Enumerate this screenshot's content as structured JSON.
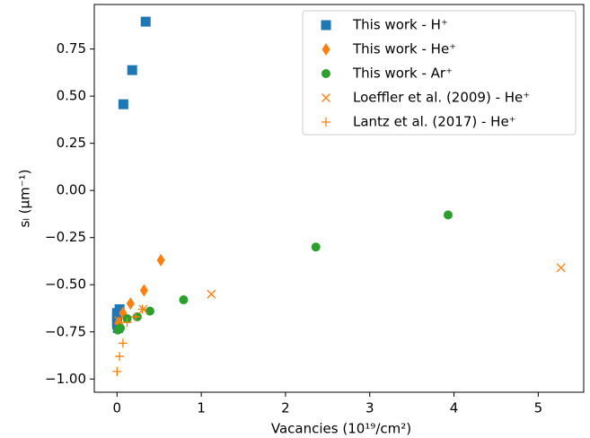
{
  "chart_data": {
    "type": "scatter",
    "x_label": "Vacancies (10¹⁹/cm²)",
    "y_label": "sₗ (μm⁻¹)",
    "xlim": [
      -0.27,
      5.54
    ],
    "ylim": [
      -1.07,
      0.986
    ],
    "xticks": [
      0,
      1,
      2,
      3,
      4,
      5
    ],
    "yticks": [
      {
        "value": -1,
        "label": "−1.00"
      },
      {
        "value": -0.75,
        "label": "−0.75"
      },
      {
        "value": -0.5,
        "label": "−0.50"
      },
      {
        "value": -0.25,
        "label": "−0.25"
      },
      {
        "value": 0,
        "label": "0.00"
      },
      0.25,
      {
        "value": 0.5,
        "label": "0.50"
      },
      0.75
    ],
    "legend": "upper right",
    "series": [
      {
        "name": "This work - H⁺",
        "color": "#1f77b4",
        "marker": "square",
        "x": [
          0.34,
          0.18,
          0.075,
          0.03,
          0.0,
          0.0,
          0.0,
          0.0,
          0.01
        ],
        "y": [
          0.895,
          0.638,
          0.457,
          -0.63,
          -0.65,
          -0.67,
          -0.69,
          -0.71,
          -0.73
        ]
      },
      {
        "name": "This work - He⁺",
        "color": "#ff7f0e",
        "marker": "diamond",
        "x": [
          0.52,
          0.32,
          0.16,
          0.07,
          0.02
        ],
        "y": [
          -0.37,
          -0.53,
          -0.6,
          -0.65,
          -0.7
        ]
      },
      {
        "name": "This work - Ar⁺",
        "color": "#2ca02c",
        "marker": "circle",
        "x": [
          3.93,
          2.36,
          0.79,
          0.39,
          0.24,
          0.12,
          0.04,
          0.01
        ],
        "y": [
          -0.13,
          -0.3,
          -0.58,
          -0.64,
          -0.67,
          -0.68,
          -0.73,
          -0.74
        ]
      },
      {
        "name": "Loeffler et al. (2009) - He⁺",
        "color": "#ff7f0e",
        "marker": "x",
        "x": [
          5.27,
          1.12,
          0.31,
          0.02
        ],
        "y": [
          -0.41,
          -0.55,
          -0.63,
          -0.69
        ]
      },
      {
        "name": "Lantz et al. (2017) - He⁺",
        "color": "#ff7f0e",
        "marker": "plus",
        "x": [
          0.0,
          0.03,
          0.07,
          0.12,
          0.22,
          0.3
        ],
        "y": [
          -0.96,
          -0.88,
          -0.81,
          -0.7,
          -0.67,
          -0.63
        ]
      }
    ]
  }
}
